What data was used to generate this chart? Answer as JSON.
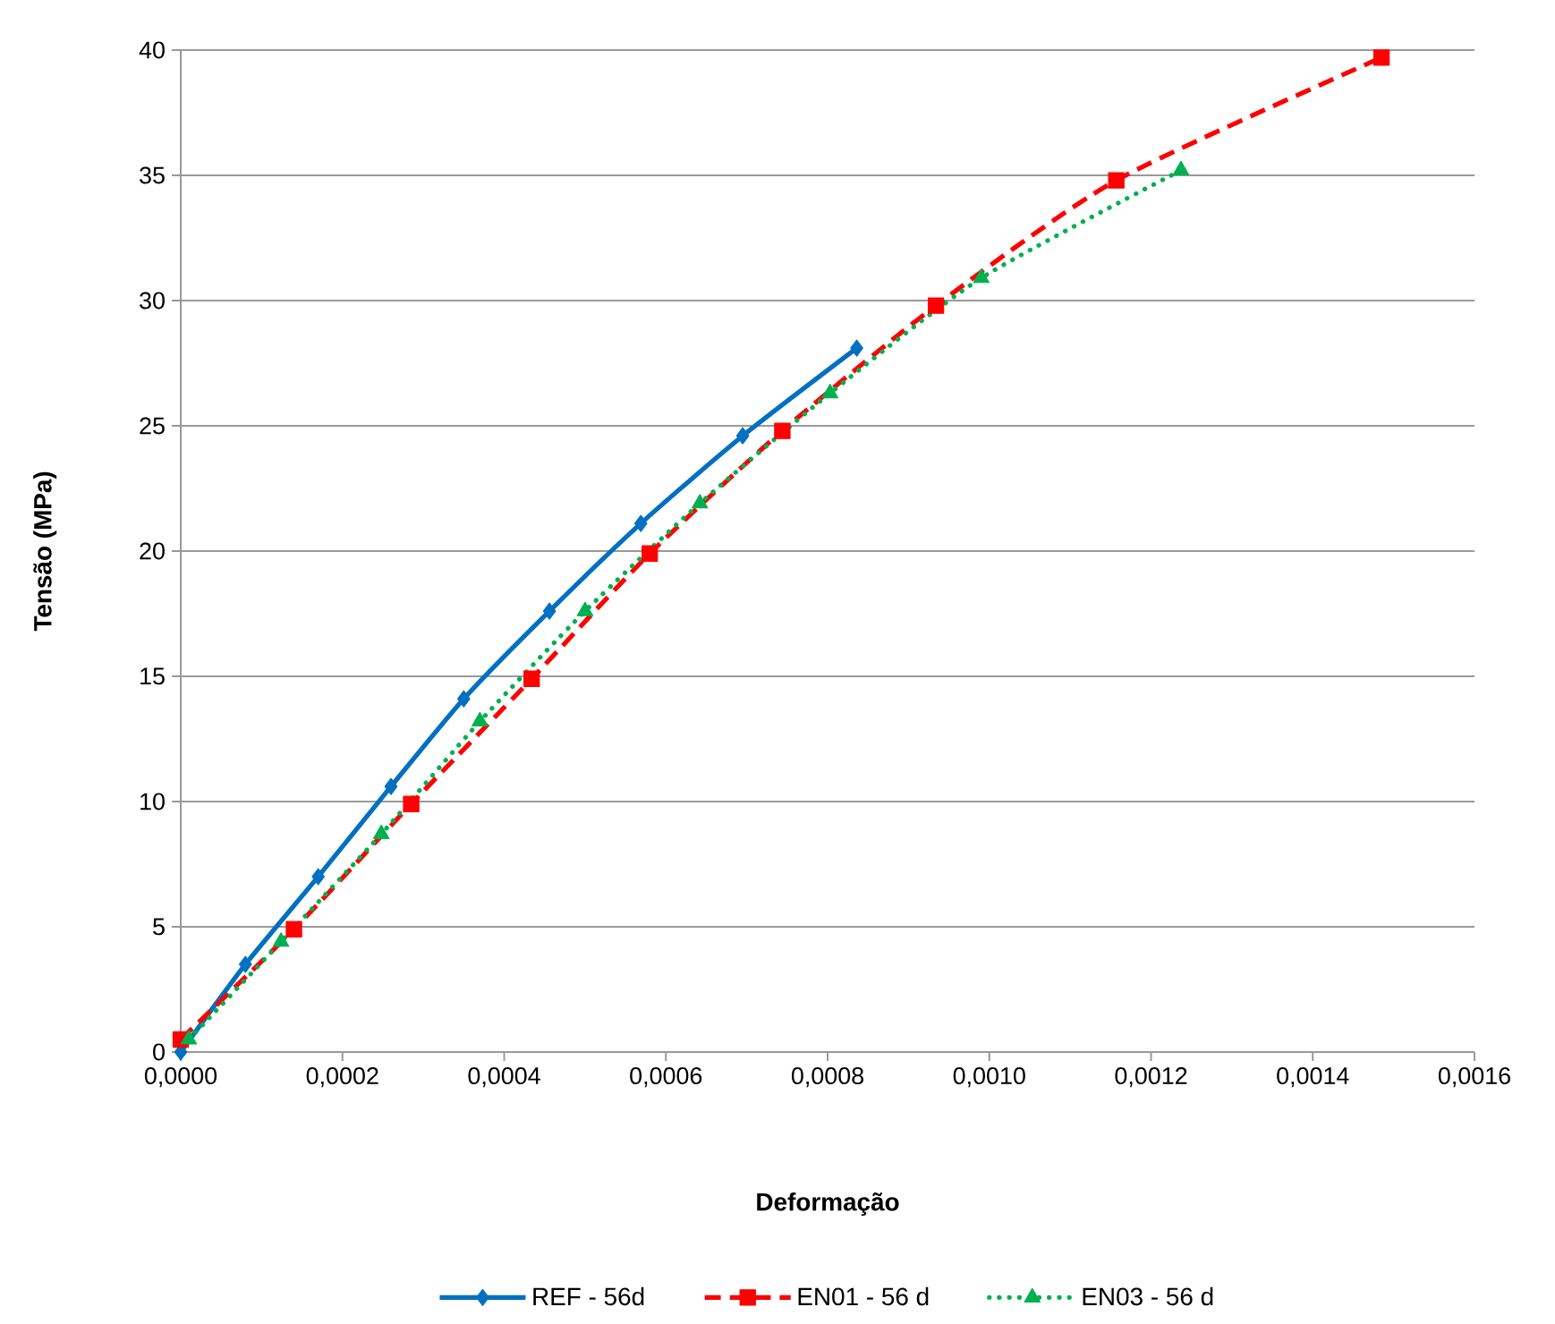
{
  "chart_data": {
    "type": "line",
    "xlabel": "Deformação",
    "ylabel": "Tensão (MPa)",
    "xlim": [
      0,
      0.0016
    ],
    "xticks": [
      {
        "value": 0,
        "label": "0,0000"
      },
      {
        "value": 0.0002,
        "label": "0,0002"
      },
      {
        "value": 0.0004,
        "label": "0,0004"
      },
      {
        "value": 0.0006,
        "label": "0,0006"
      },
      {
        "value": 0.0008,
        "label": "0,0008"
      },
      {
        "value": 0.001,
        "label": "0,0010"
      },
      {
        "value": 0.0012,
        "label": "0,0012"
      },
      {
        "value": 0.0014,
        "label": "0,0014"
      },
      {
        "value": 0.0016,
        "label": "0,0016"
      }
    ],
    "ylim": [
      0,
      40
    ],
    "yticks": [
      0,
      5,
      10,
      15,
      20,
      25,
      30,
      35,
      40
    ],
    "grid": "y",
    "legend": "bottom",
    "series": [
      {
        "name": "REF - 56d",
        "color": "#0070c0",
        "marker": "diamond",
        "line_style": "solid",
        "x": [
          0,
          8e-05,
          0.00017,
          0.00026,
          0.00035,
          0.000456,
          0.000569,
          0.000695,
          0.000836
        ],
        "values": [
          0,
          3.5,
          7.0,
          10.6,
          14.1,
          17.6,
          21.1,
          24.6,
          28.1
        ]
      },
      {
        "name": "EN01 - 56 d",
        "color": "#ff0000",
        "marker": "square",
        "line_style": "dashed",
        "x": [
          0,
          0.00014,
          0.000285,
          0.000434,
          0.00058,
          0.000744,
          0.000934,
          0.001157,
          0.001485
        ],
        "values": [
          0.5,
          4.9,
          9.9,
          14.9,
          19.9,
          24.8,
          29.8,
          34.8,
          39.7
        ]
      },
      {
        "name": "EN03 - 56 d",
        "color": "#00b050",
        "marker": "triangle",
        "line_style": "dotted",
        "x": [
          1e-05,
          0.000124,
          0.000248,
          0.00037,
          0.0005,
          0.000642,
          0.000803,
          0.00099,
          0.001237
        ],
        "values": [
          0.5,
          4.4,
          8.7,
          13.2,
          17.6,
          21.9,
          26.3,
          30.9,
          35.2
        ]
      }
    ]
  }
}
